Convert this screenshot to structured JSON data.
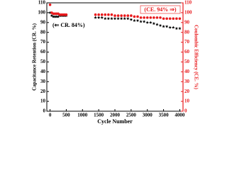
{
  "chart_data": {
    "type": "scatter",
    "xlabel": "Cycle Number",
    "ylabel": "Capacitance Retention (CR. %)",
    "y2label": "Coulombic Efficiency (CE. %)",
    "annotations": [
      "(⇐ CR. 84%)",
      "(CE. 94% ⇒)"
    ],
    "x": [
      0,
      50,
      100,
      150,
      200,
      250,
      300,
      350,
      400,
      450,
      500,
      1400,
      1500,
      1600,
      1700,
      1800,
      1900,
      2000,
      2100,
      2200,
      2300,
      2400,
      2500,
      2600,
      2700,
      2800,
      2900,
      3000,
      3100,
      3200,
      3300,
      3400,
      3500,
      3600,
      3700,
      3800,
      3900,
      4000
    ],
    "series": [
      {
        "name": "CR",
        "color": "#000000",
        "marker": "star",
        "values": [
          100,
          97,
          96,
          96,
          96,
          96,
          97,
          97,
          97,
          97,
          97,
          95,
          95,
          95,
          94,
          94,
          94,
          94,
          94,
          94,
          94,
          94,
          93,
          92,
          92,
          91,
          91,
          90,
          90,
          89,
          88,
          87,
          86,
          86,
          85,
          85,
          84,
          84
        ]
      },
      {
        "name": "CE",
        "color": "#e8191c",
        "marker": "circle",
        "axis": "y2",
        "values": [
          108,
          100,
          99,
          99,
          99,
          99,
          98,
          98,
          98,
          98,
          98,
          98,
          98,
          98,
          98,
          98,
          98,
          97,
          97,
          97,
          97,
          97,
          97,
          96,
          96,
          95,
          95,
          95,
          95,
          95,
          95,
          95,
          94,
          94,
          94,
          94,
          94,
          94
        ]
      }
    ],
    "xlim": [
      -100,
      4100
    ],
    "xticks": [
      0,
      500,
      1000,
      1500,
      2000,
      2500,
      3000,
      3500,
      4000
    ],
    "ylim": [
      0,
      110
    ],
    "yticks": [
      0,
      10,
      20,
      30,
      40,
      50,
      60,
      70,
      80,
      90,
      100,
      110
    ],
    "y2lim": [
      0,
      110
    ],
    "y2ticks": [
      0,
      10,
      20,
      30,
      40,
      50,
      60,
      70,
      80,
      90,
      100,
      110
    ],
    "y2color": "#e8191c"
  }
}
